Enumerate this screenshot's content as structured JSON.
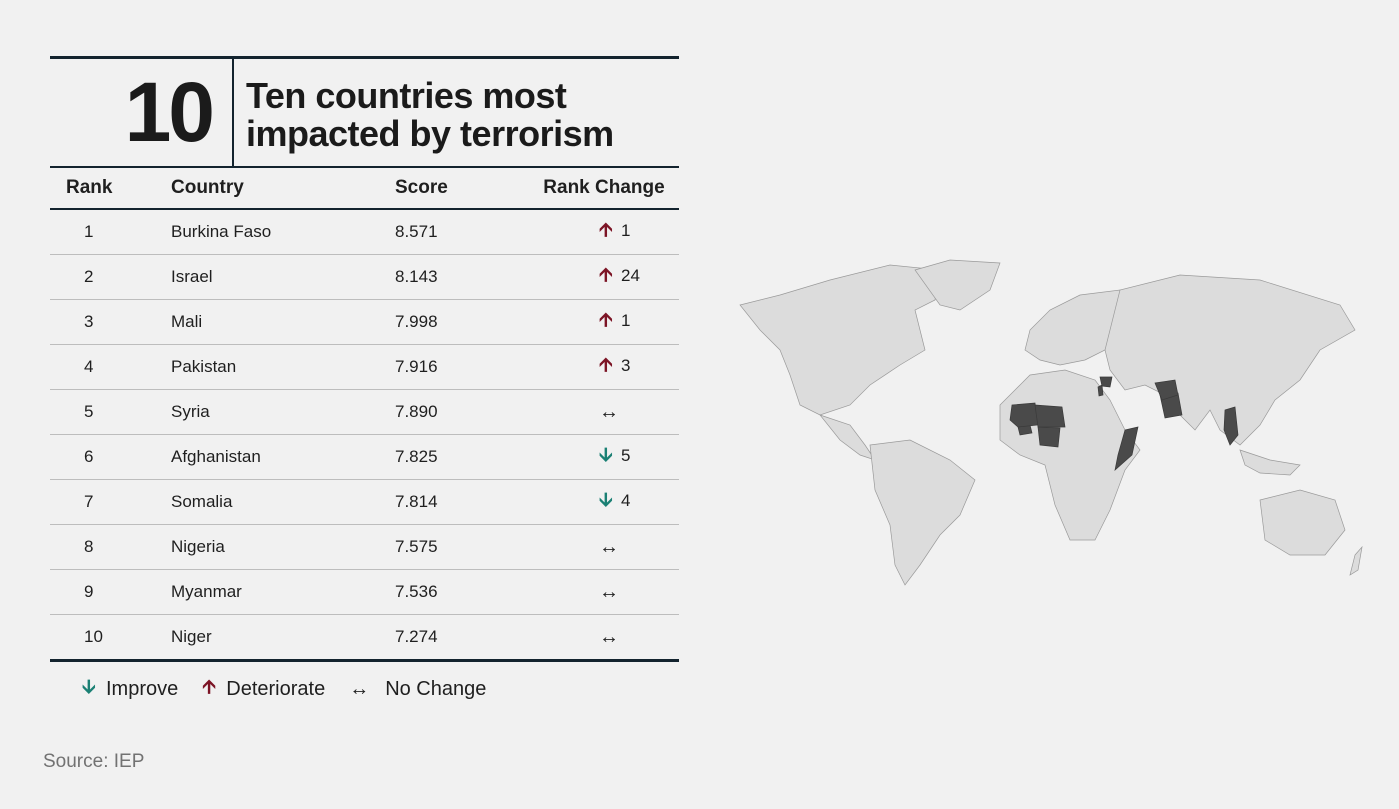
{
  "header": {
    "figure_number": "10",
    "title_line1": "Ten countries most",
    "title_line2": "impacted by terrorism"
  },
  "chart_data": {
    "type": "table",
    "columns": [
      "Rank",
      "Country",
      "Score",
      "Rank Change"
    ],
    "rows": [
      {
        "rank": "1",
        "country": "Burkina Faso",
        "score": "8.571",
        "direction": "deteriorate",
        "change": "1"
      },
      {
        "rank": "2",
        "country": "Israel",
        "score": "8.143",
        "direction": "deteriorate",
        "change": "24"
      },
      {
        "rank": "3",
        "country": "Mali",
        "score": "7.998",
        "direction": "deteriorate",
        "change": "1"
      },
      {
        "rank": "4",
        "country": "Pakistan",
        "score": "7.916",
        "direction": "deteriorate",
        "change": "3"
      },
      {
        "rank": "5",
        "country": "Syria",
        "score": "7.890",
        "direction": "no-change",
        "change": ""
      },
      {
        "rank": "6",
        "country": "Afghanistan",
        "score": "7.825",
        "direction": "improve",
        "change": "5"
      },
      {
        "rank": "7",
        "country": "Somalia",
        "score": "7.814",
        "direction": "improve",
        "change": "4"
      },
      {
        "rank": "8",
        "country": "Nigeria",
        "score": "7.575",
        "direction": "no-change",
        "change": ""
      },
      {
        "rank": "9",
        "country": "Myanmar",
        "score": "7.536",
        "direction": "no-change",
        "change": ""
      },
      {
        "rank": "10",
        "country": "Niger",
        "score": "7.274",
        "direction": "no-change",
        "change": ""
      }
    ],
    "map_highlighted": [
      "Burkina Faso",
      "Israel",
      "Mali",
      "Pakistan",
      "Syria",
      "Afghanistan",
      "Somalia",
      "Nigeria",
      "Myanmar",
      "Niger"
    ]
  },
  "legend": {
    "improve": "Improve",
    "deteriorate": "Deteriorate",
    "no_change": "No Change"
  },
  "icons": {
    "improve": "arrow-down-icon",
    "deteriorate": "arrow-up-icon",
    "no_change": "arrow-left-right-icon"
  },
  "colors": {
    "improve": "#1b8074",
    "deteriorate": "#7c1425",
    "rule": "#13232e",
    "map_land": "#dcdcdc",
    "map_highlight": "#4a4a4a"
  },
  "source": "Source: IEP"
}
